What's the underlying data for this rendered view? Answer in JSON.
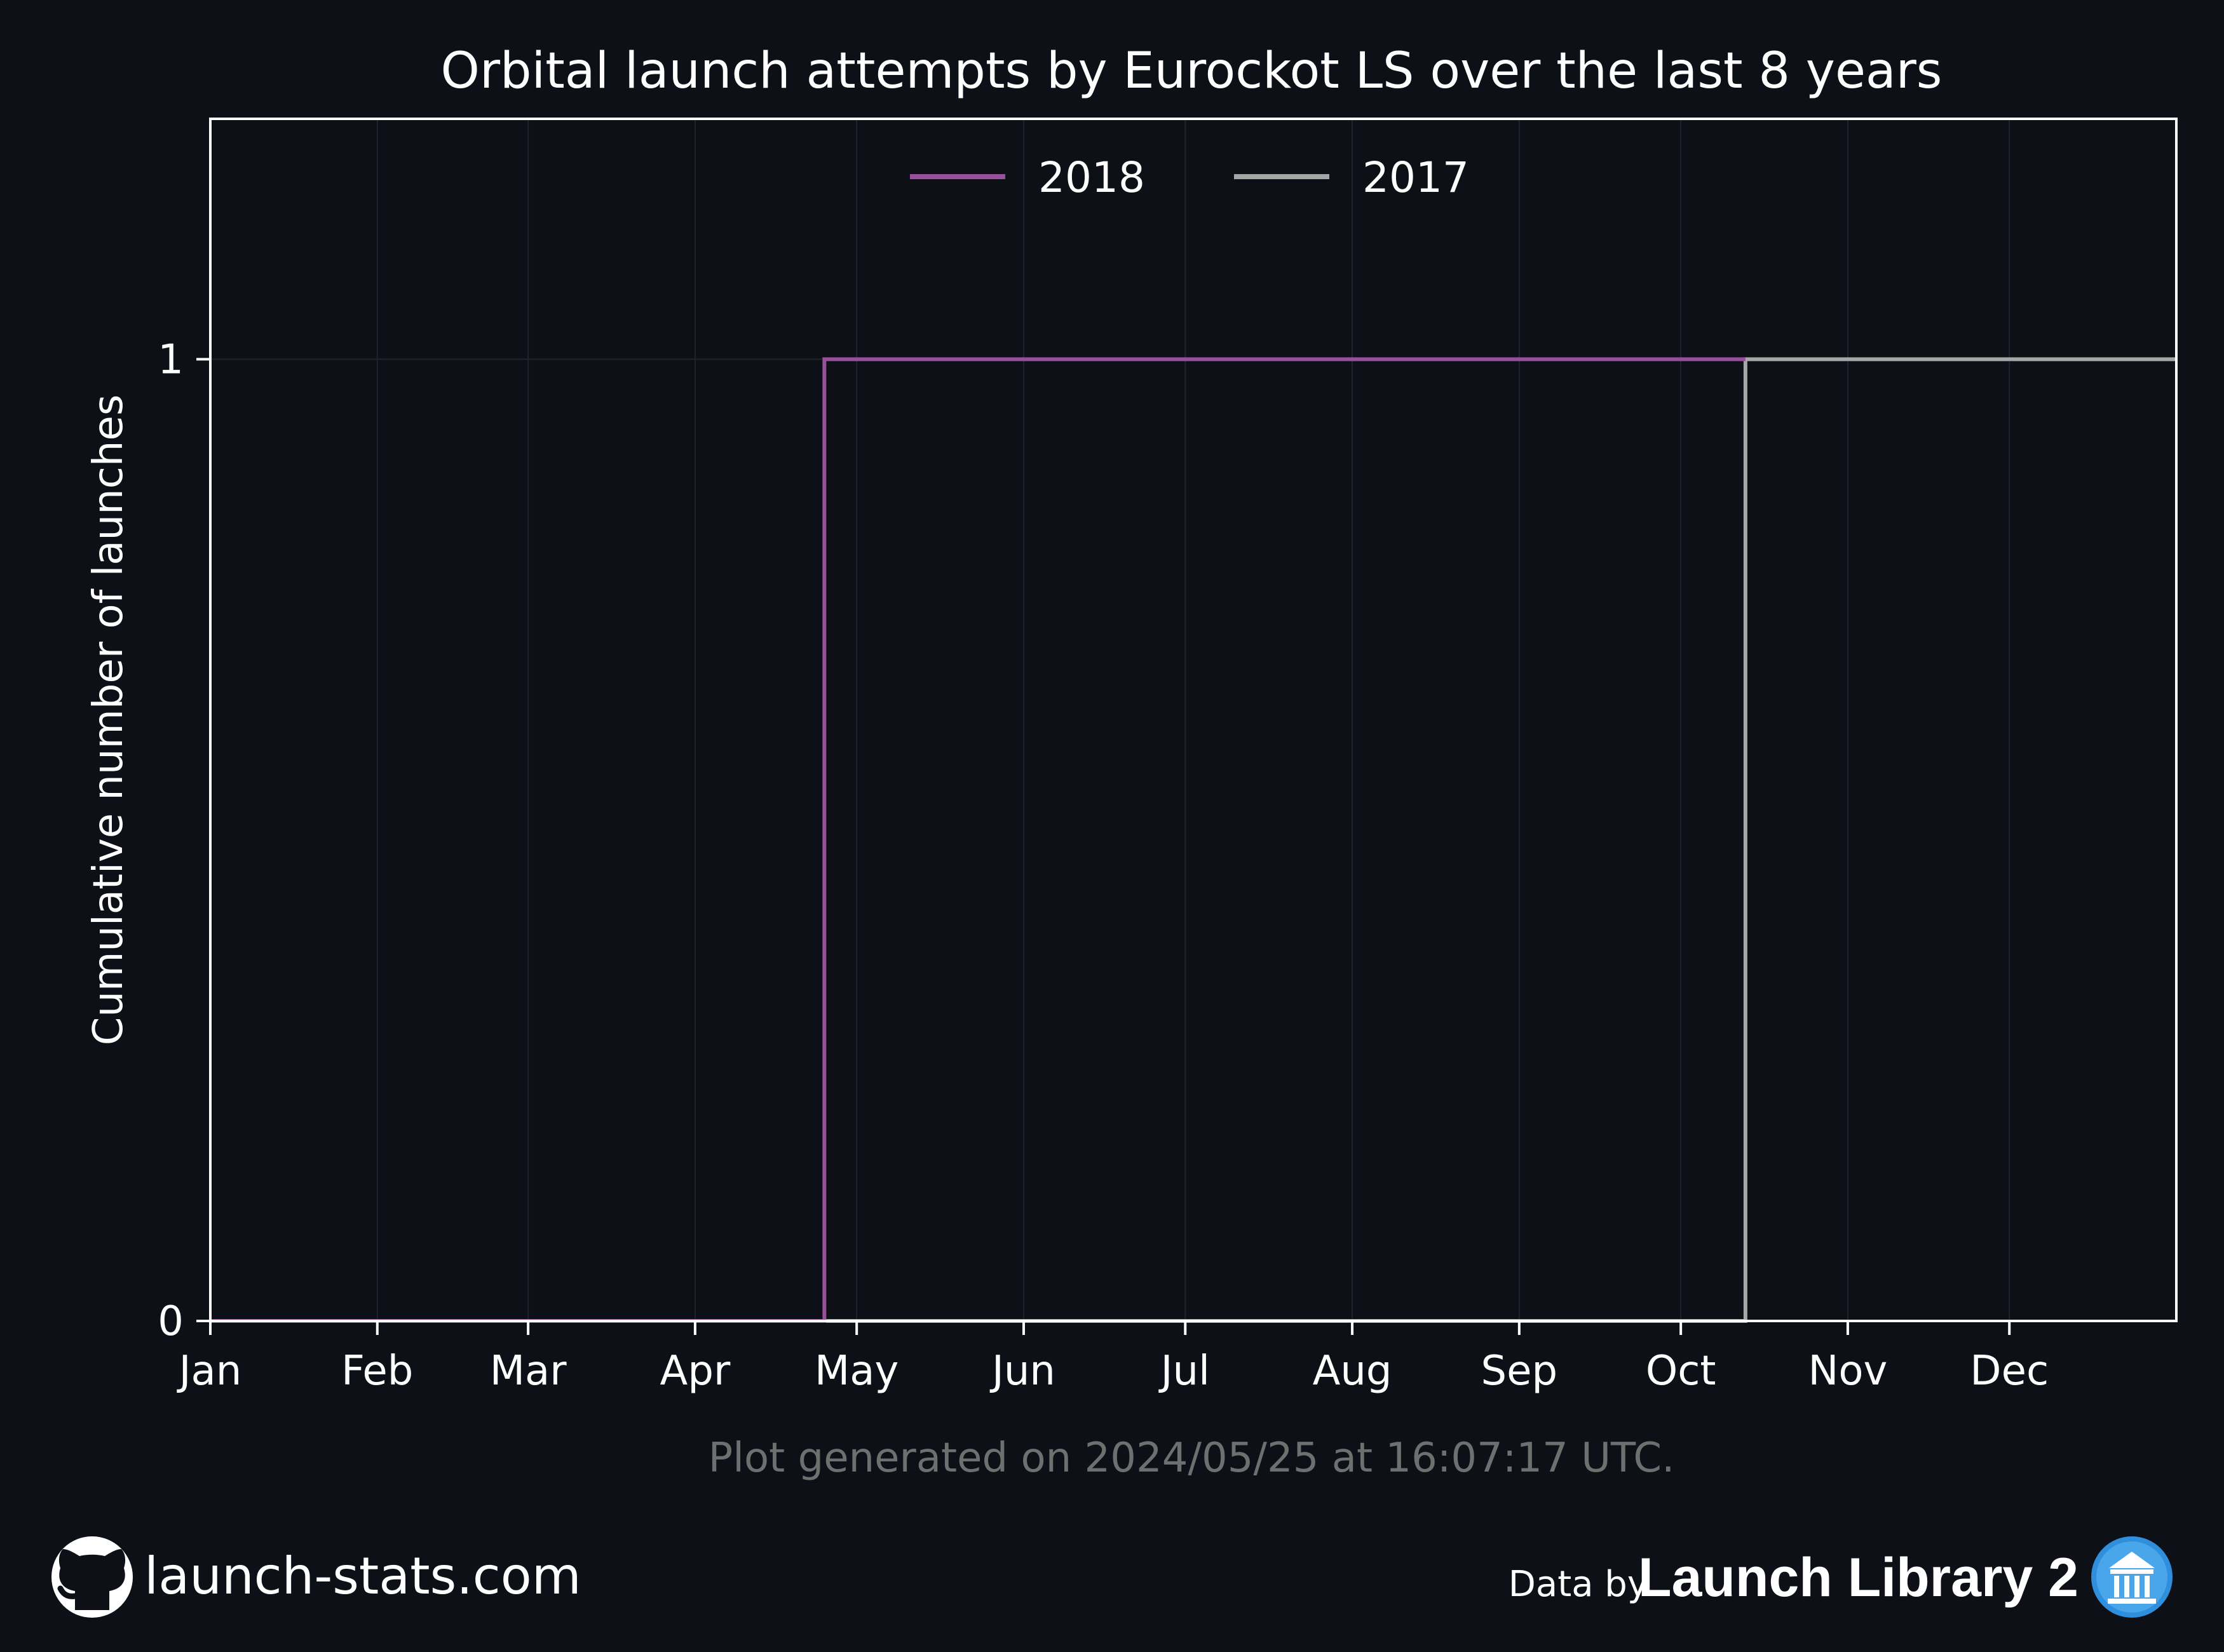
{
  "chart_data": {
    "type": "line",
    "step": true,
    "title": "Orbital launch attempts by Eurockot LS over the last 8 years",
    "xlabel": "",
    "ylabel": "Cumulative number of launches",
    "x_unit": "month",
    "xlim": [
      "Jan 1",
      "Dec 31"
    ],
    "ylim": [
      0,
      1.25
    ],
    "x_ticks": [
      "Jan",
      "Feb",
      "Mar",
      "Apr",
      "May",
      "Jun",
      "Jul",
      "Aug",
      "Sep",
      "Oct",
      "Nov",
      "Dec"
    ],
    "y_ticks": [
      0,
      1
    ],
    "grid": true,
    "legend_placement": "top-center",
    "series": [
      {
        "name": "2018",
        "color": "#98509d",
        "x": [
          "Jan 1",
          "Apr 25",
          "Apr 25",
          "Oct 13"
        ],
        "y": [
          0,
          0,
          1,
          1
        ]
      },
      {
        "name": "2017",
        "color": "#a6a6a6",
        "x": [
          "Jan 1",
          "Oct 13",
          "Oct 13",
          "Dec 31"
        ],
        "y": [
          0,
          0,
          1,
          1
        ]
      }
    ]
  },
  "footer": {
    "generated_note": "Plot generated on 2024/05/25 at 16:07:17 UTC.",
    "site": "launch-stats.com",
    "data_by": "Data by",
    "data_source": "Launch Library 2"
  },
  "icons": {
    "site": "github-icon",
    "data_source": "launch-library-icon"
  },
  "colors": {
    "background": "#0d1017",
    "axes_edge": "#ffffff",
    "grid": "#1f232b",
    "note": "#6f6f6f"
  }
}
